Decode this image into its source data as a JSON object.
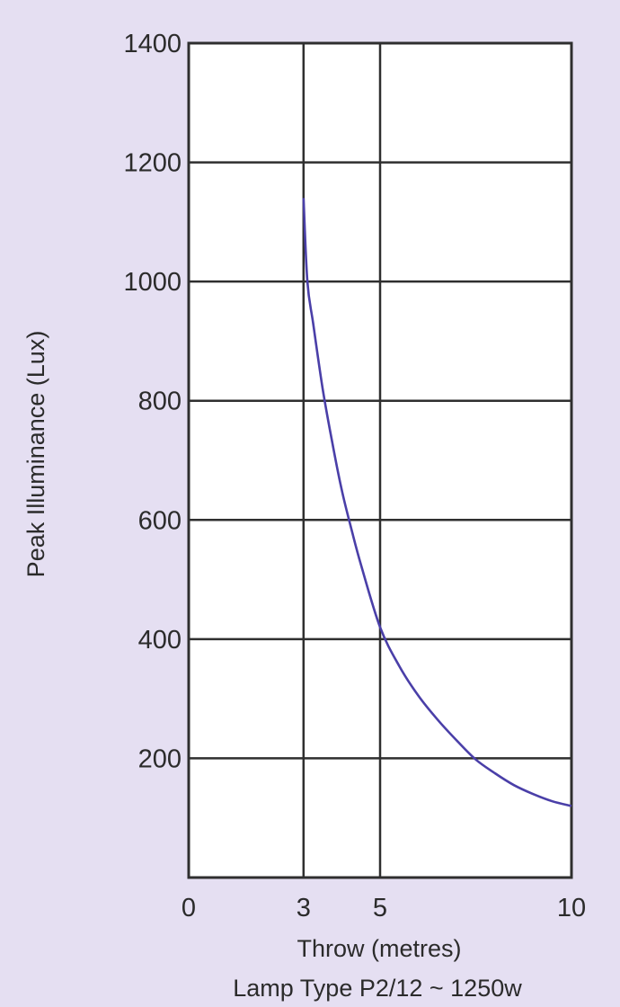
{
  "chart_data": {
    "type": "line",
    "title": "",
    "caption": "Lamp Type P2/12 ~ 1250w",
    "xlabel": "Throw (metres)",
    "ylabel": "Peak Illuminance (Lux)",
    "xlim": [
      0,
      10
    ],
    "ylim": [
      0,
      1400
    ],
    "x_ticks": [
      0,
      3,
      5,
      10
    ],
    "y_ticks": [
      200,
      400,
      600,
      800,
      1000,
      1200,
      1400
    ],
    "grid": true,
    "series": [
      {
        "color": "#4a3fa8",
        "x": [
          3.0,
          3.1,
          3.25,
          3.5,
          3.75,
          4.0,
          4.25,
          4.5,
          5.0,
          5.5,
          6.0,
          6.5,
          7.0,
          7.5,
          8.0,
          8.5,
          9.0,
          9.5,
          10.0
        ],
        "y": [
          1140,
          1000,
          930,
          820,
          730,
          650,
          585,
          525,
          420,
          355,
          305,
          265,
          230,
          198,
          175,
          155,
          140,
          128,
          120
        ]
      }
    ]
  }
}
